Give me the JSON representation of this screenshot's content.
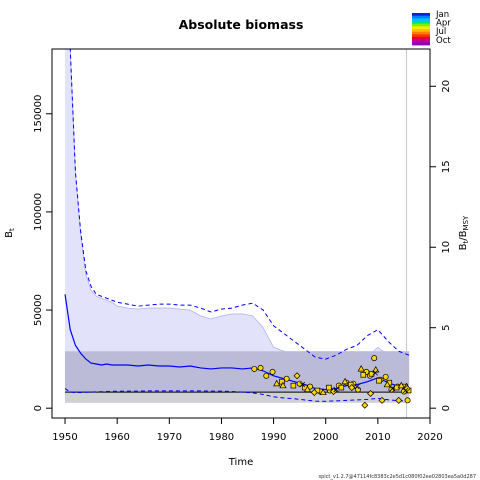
{
  "chart_data": {
    "type": "line",
    "title": "Absolute biomass",
    "xlabel": "Time",
    "ylabel_left": "B",
    "ylabel_left_sub": "t",
    "ylabel_right": "B",
    "ylabel_right_sub": "t",
    "ylabel_right_div": "/B",
    "ylabel_right_sub2": "MSY",
    "xlim": [
      1947.5,
      2020
    ],
    "ylim": [
      -5000,
      183000
    ],
    "bmsy": 8200,
    "x_ticks": [
      1950,
      1960,
      1970,
      1980,
      1990,
      2000,
      2010,
      2020
    ],
    "y_ticks": [
      0,
      50000,
      100000,
      150000
    ],
    "y_tick_labels": [
      "0",
      "50000",
      "100000",
      "150000"
    ],
    "right_ticks": [
      0,
      5,
      10,
      15,
      20
    ],
    "last_obs_year": 2015.5,
    "bmsy_band": [
      2800,
      29000
    ],
    "bmsy_band_dark": [
      8200,
      29000
    ],
    "biomass": {
      "x": [
        1950,
        1951,
        1952,
        1953,
        1954,
        1955,
        1956,
        1957,
        1958,
        1959,
        1960,
        1962,
        1964,
        1966,
        1968,
        1970,
        1972,
        1974,
        1976,
        1978,
        1980,
        1982,
        1984,
        1986,
        1988,
        1990,
        1992,
        1994,
        1996,
        1998,
        2000,
        2002,
        2004,
        2006,
        2008,
        2010,
        2012,
        2014,
        2016
      ],
      "median": [
        58000,
        40000,
        32000,
        28000,
        25000,
        23000,
        22500,
        22000,
        22500,
        22000,
        22000,
        22000,
        21500,
        22000,
        21500,
        21500,
        21000,
        21500,
        20500,
        20000,
        20500,
        20500,
        20000,
        20500,
        19000,
        16500,
        15000,
        13500,
        12000,
        10000,
        9500,
        10000,
        11500,
        12000,
        13500,
        15500,
        13000,
        11000,
        10500
      ],
      "lower": [
        10000,
        8200,
        8000,
        8000,
        8100,
        8200,
        8300,
        8400,
        8500,
        8600,
        8600,
        8700,
        8700,
        8800,
        8800,
        8800,
        8800,
        8800,
        8800,
        8700,
        8700,
        8500,
        8200,
        7800,
        7000,
        5800,
        5200,
        4800,
        4200,
        3600,
        3500,
        3700,
        4000,
        4200,
        4500,
        5000,
        4300,
        3800,
        3600
      ],
      "upper": [
        230000,
        183000,
        120000,
        90000,
        70000,
        62000,
        58000,
        57000,
        56000,
        55000,
        54000,
        53000,
        52000,
        52500,
        53000,
        53000,
        52500,
        52500,
        51000,
        49000,
        50500,
        51000,
        52500,
        53500,
        50000,
        42000,
        38000,
        34000,
        30000,
        26000,
        25000,
        27000,
        30000,
        32000,
        37000,
        40000,
        34000,
        29000,
        27000
      ],
      "upper_light": [
        230000,
        183000,
        120000,
        88000,
        68000,
        60000,
        57000,
        56000,
        55000,
        54000,
        52000,
        51000,
        50500,
        51000,
        51000,
        51000,
        50500,
        50000,
        47000,
        45500,
        47000,
        48000,
        48000,
        47000,
        41000,
        31000,
        29000,
        25000,
        22000,
        19000,
        18000,
        19000,
        21000,
        22000,
        26000,
        31000,
        27000,
        23000,
        22500
      ]
    },
    "index_points": {
      "circles": [
        [
          1986.3,
          20000
        ],
        [
          1987.5,
          20500
        ],
        [
          1988.6,
          16500
        ],
        [
          1989.8,
          18500
        ],
        [
          1992.5,
          15000
        ],
        [
          1995,
          12500
        ],
        [
          1997,
          11000
        ],
        [
          1999,
          8500
        ],
        [
          2000.8,
          9000
        ],
        [
          2002.5,
          11500
        ],
        [
          2004,
          13000
        ],
        [
          2005.3,
          12500
        ],
        [
          2006.2,
          9500
        ],
        [
          2007.8,
          18500
        ],
        [
          2008.5,
          16500
        ],
        [
          2009.3,
          25500
        ],
        [
          2010.5,
          14500
        ],
        [
          2011.5,
          16000
        ],
        [
          2012.6,
          9500
        ],
        [
          2013.8,
          11000
        ],
        [
          2015,
          8500
        ],
        [
          2015.7,
          4000
        ]
      ],
      "squares": [
        [
          1991.6,
          13500
        ],
        [
          1993.8,
          11500
        ],
        [
          1996,
          10500
        ],
        [
          1998.4,
          9000
        ],
        [
          2000.6,
          10500
        ],
        [
          2003,
          10500
        ],
        [
          2004.8,
          12000
        ],
        [
          2007.2,
          17000
        ],
        [
          2008.8,
          17500
        ],
        [
          2010.2,
          14000
        ],
        [
          2012.2,
          13000
        ],
        [
          2013.6,
          10500
        ],
        [
          2015.2,
          11000
        ],
        [
          2015.9,
          9000
        ]
      ],
      "triangles": [
        [
          1990.6,
          12500
        ],
        [
          1991.8,
          11500
        ],
        [
          1996.5,
          9500
        ],
        [
          1999.5,
          8000
        ],
        [
          2003.7,
          13500
        ],
        [
          2006.8,
          20000
        ],
        [
          2009.6,
          19500
        ],
        [
          2011.8,
          12000
        ],
        [
          2014.5,
          11500
        ],
        [
          2015.5,
          11000
        ]
      ],
      "diamonds": [
        [
          1994.5,
          16500
        ],
        [
          1997.8,
          8000
        ],
        [
          2001.5,
          8500
        ],
        [
          2005,
          10500
        ],
        [
          2007.5,
          1500
        ],
        [
          2008.6,
          7500
        ],
        [
          2010.8,
          4000
        ],
        [
          2014,
          4000
        ],
        [
          2015.6,
          10000
        ]
      ],
      "crosses": [
        [
          1995.5,
          12000
        ],
        [
          2002,
          9500
        ],
        [
          2006,
          11000
        ],
        [
          2009.5,
          18000
        ],
        [
          2012.8,
          10000
        ],
        [
          2015.3,
          9000
        ]
      ]
    },
    "legend": {
      "labels": [
        "Jan",
        "Apr",
        "Jul",
        "Oct"
      ],
      "colors": [
        "#1020d0",
        "#0080ff",
        "#00c0ff",
        "#00e080",
        "#80f000",
        "#f0f000",
        "#ffc000",
        "#ff8000",
        "#ff3000",
        "#e00040",
        "#c00090",
        "#9000c0"
      ]
    },
    "footer": "spict_v1.2.7@47114fc8383c2e5d1c080f02ee02803ea5a0d287"
  }
}
